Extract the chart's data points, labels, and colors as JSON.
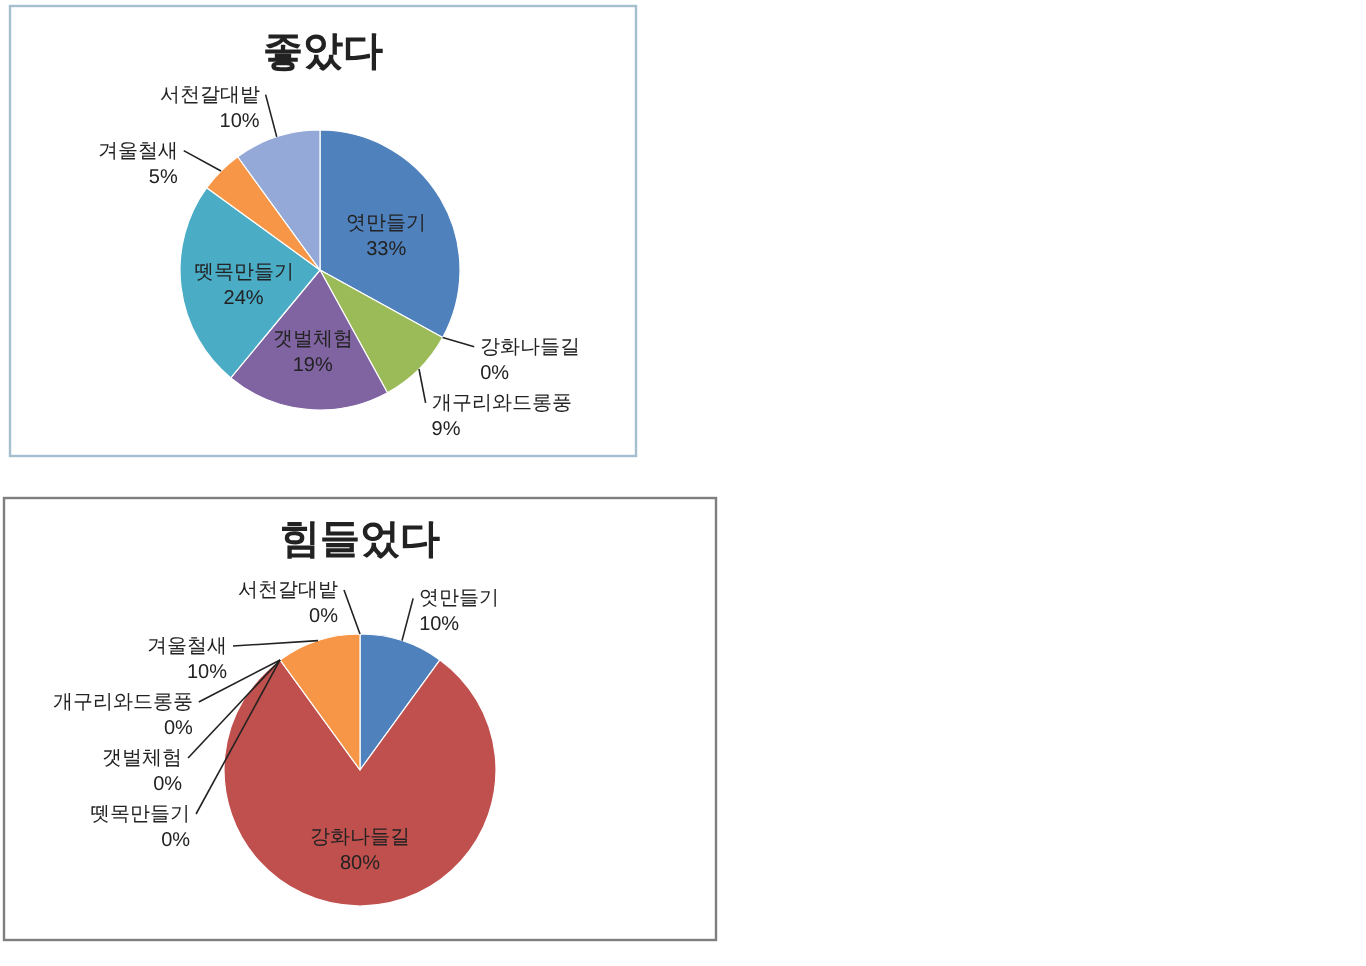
{
  "chart_data": [
    {
      "type": "pie",
      "title": "좋았다",
      "categories": [
        "엿만들기",
        "강화나들길",
        "개구리와드롱풍",
        "갯벌체험",
        "뗏목만들기",
        "겨울철새",
        "서천갈대밭"
      ],
      "values": [
        33,
        0,
        9,
        19,
        24,
        5,
        10
      ],
      "value_labels": [
        "33%",
        "0%",
        "9%",
        "19%",
        "24%",
        "5%",
        "10%"
      ],
      "colors": [
        "#4f81bd",
        null,
        "#9bbb59",
        "#8064a2",
        "#4bacc6",
        "#f79646",
        "#95a9d8"
      ]
    },
    {
      "type": "pie",
      "title": "힘들었다",
      "categories": [
        "엿만들기",
        "강화나들길",
        "개구리와드롱풍",
        "갯벌체험",
        "뗏목만들기",
        "겨울철새",
        "서천갈대밭"
      ],
      "values": [
        10,
        80,
        0,
        0,
        0,
        10,
        0
      ],
      "value_labels": [
        "10%",
        "80%",
        "0%",
        "0%",
        "0%",
        "10%",
        "0%"
      ],
      "colors": [
        "#4f81bd",
        "#c0504d",
        null,
        null,
        null,
        "#f79646",
        null
      ]
    }
  ]
}
